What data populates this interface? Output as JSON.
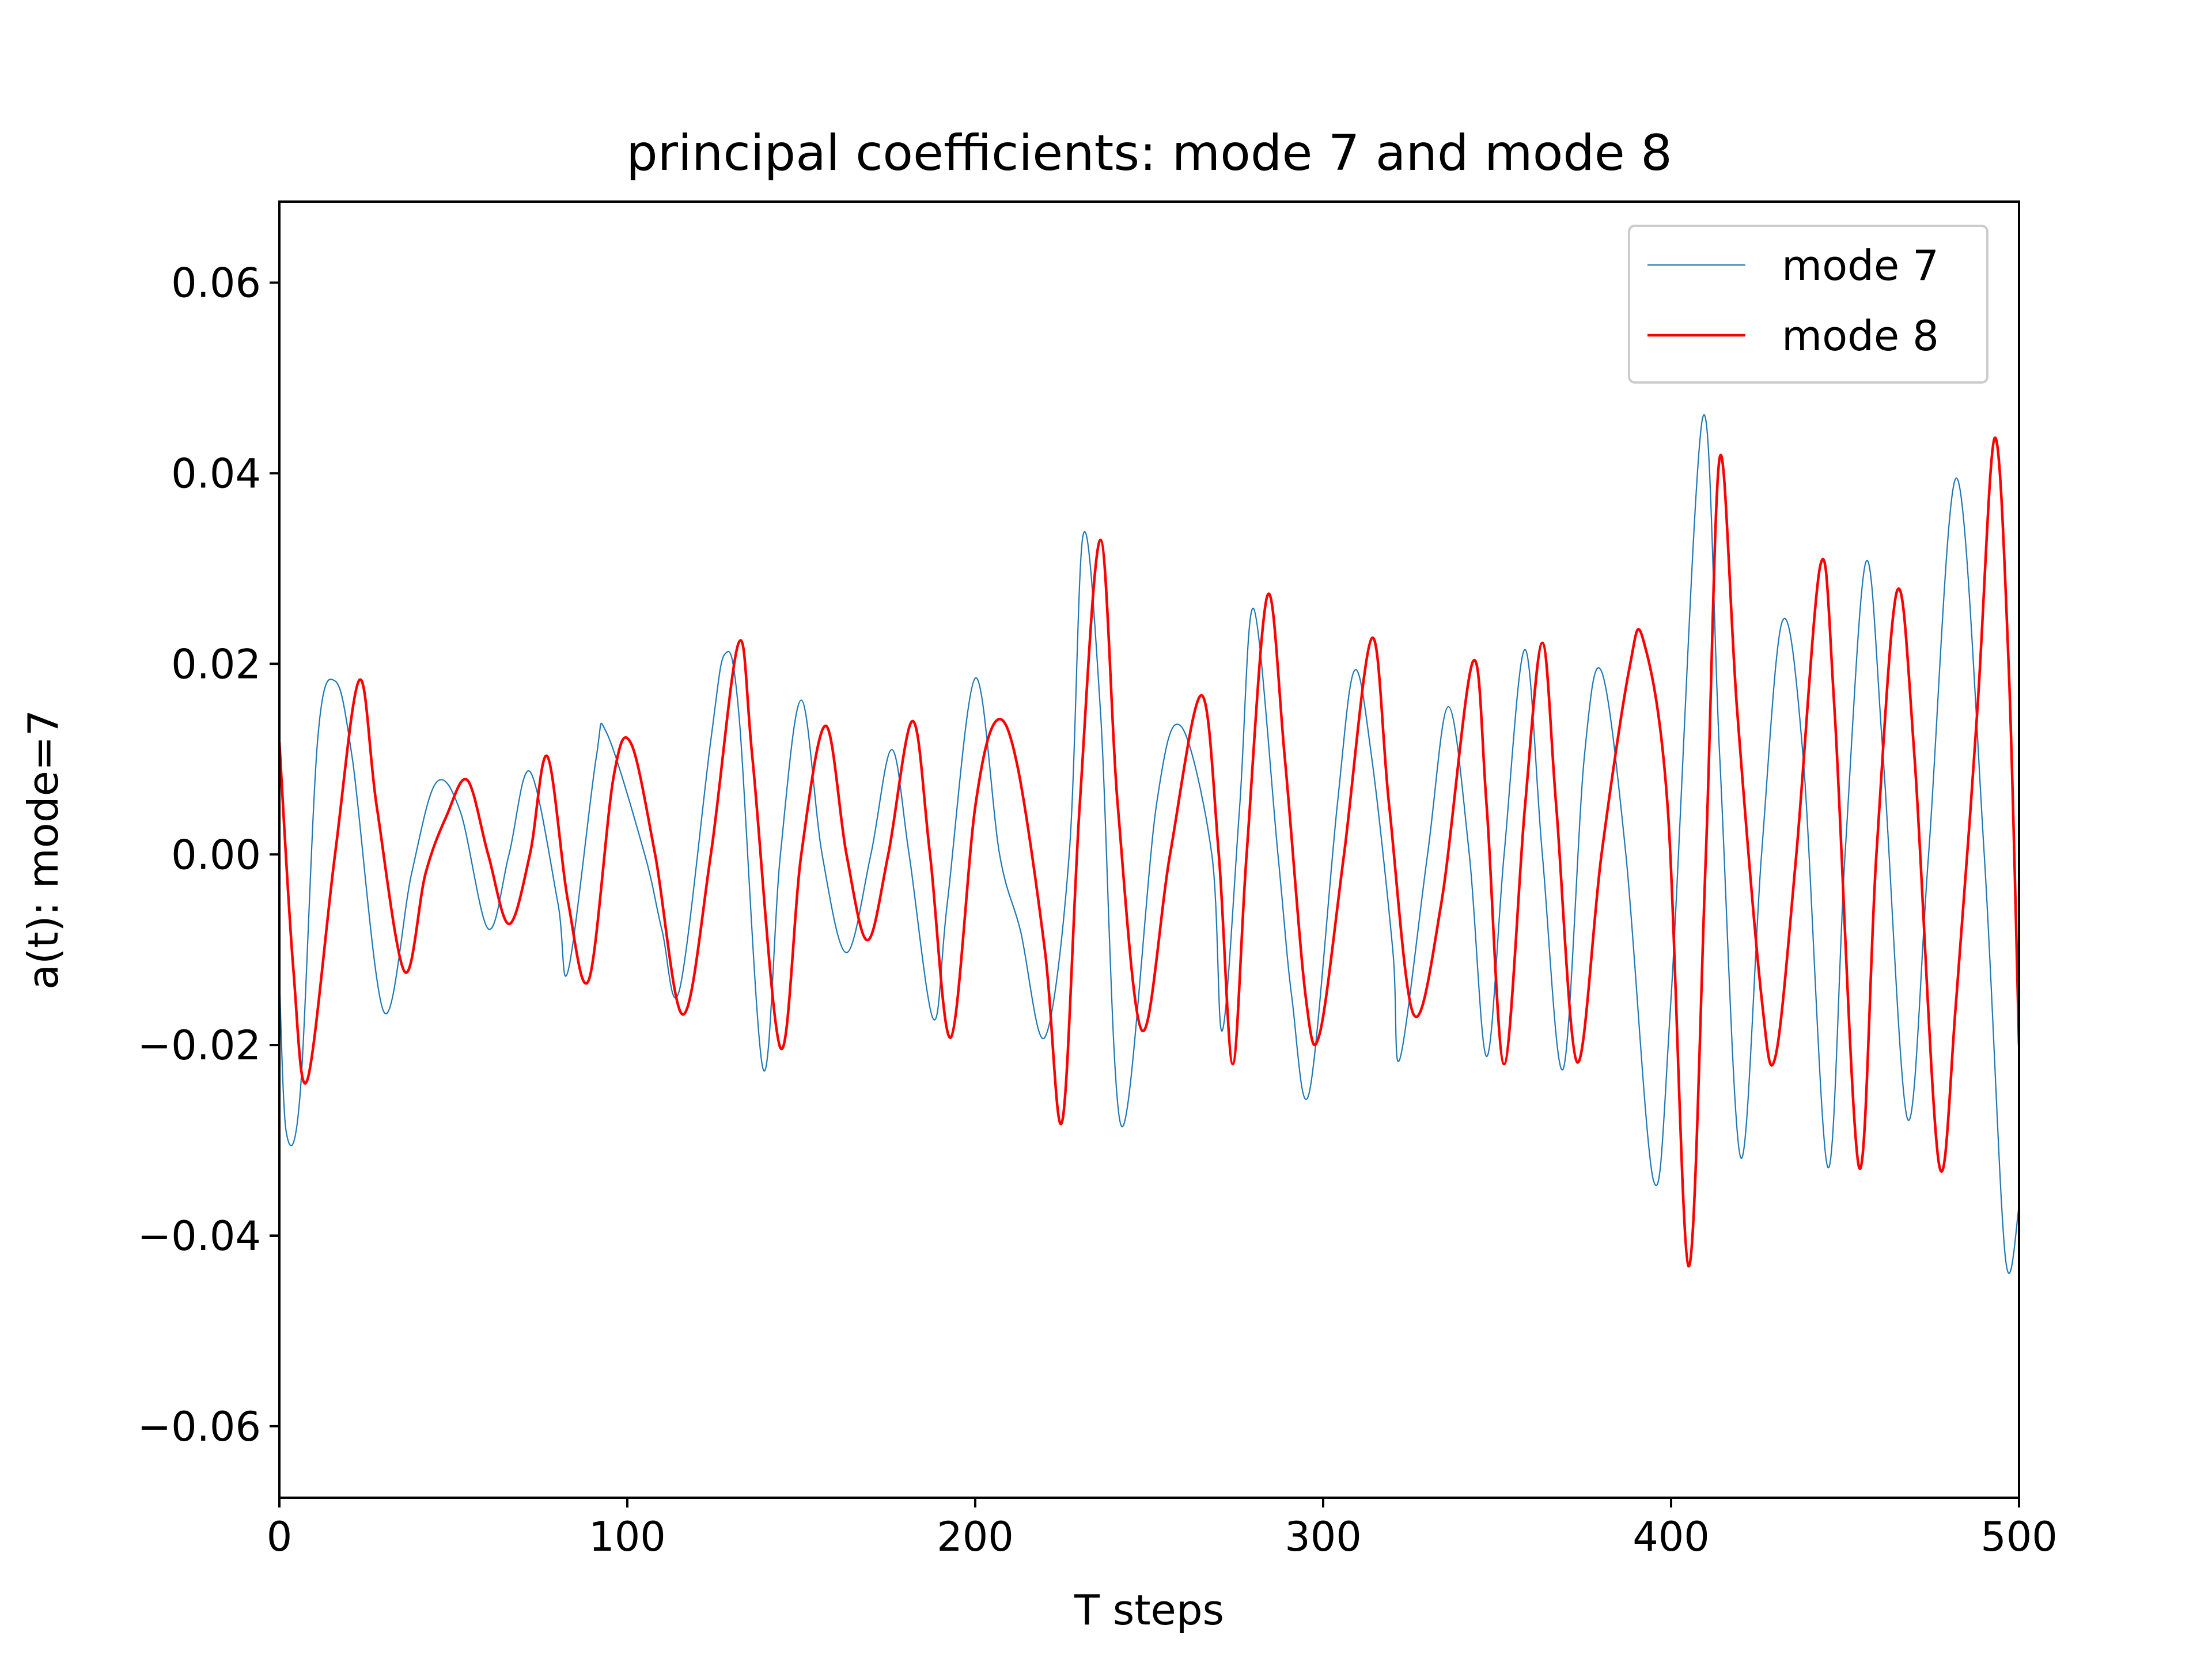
{
  "chart_data": {
    "type": "line",
    "title": "principal coefficients: mode 7 and mode 8",
    "xlabel": "T steps",
    "ylabel": "a(t): mode=7",
    "xlim": [
      0,
      500
    ],
    "ylim": [
      -0.0675,
      0.0685
    ],
    "xticks": [
      0,
      100,
      200,
      300,
      400,
      500
    ],
    "xtick_labels": [
      "0",
      "100",
      "200",
      "300",
      "400",
      "500"
    ],
    "yticks": [
      -0.06,
      -0.04,
      -0.02,
      0.0,
      0.02,
      0.04,
      0.06
    ],
    "ytick_labels": [
      "−0.06",
      "−0.04",
      "−0.02",
      "0.00",
      "0.02",
      "0.04",
      "0.06"
    ],
    "grid": false,
    "legend_position": "top-right",
    "series": [
      {
        "name": "mode 7",
        "color": "#1f77b4",
        "points": [
          [
            0,
            -0.013
          ],
          [
            2,
            -0.0292
          ],
          [
            6,
            -0.025
          ],
          [
            11,
            0.012
          ],
          [
            16,
            0.0182
          ],
          [
            21,
            0.01
          ],
          [
            30,
            -0.0165
          ],
          [
            38,
            -0.002
          ],
          [
            45,
            0.0075
          ],
          [
            52,
            0.0045
          ],
          [
            60,
            -0.0078
          ],
          [
            66,
            0.0
          ],
          [
            72,
            0.0087
          ],
          [
            80,
            -0.005
          ],
          [
            83,
            -0.0122
          ],
          [
            91,
            0.01
          ],
          [
            94,
            0.0128
          ],
          [
            105,
            0.0
          ],
          [
            110,
            -0.008
          ],
          [
            115,
            -0.0142
          ],
          [
            124,
            0.012
          ],
          [
            128,
            0.021
          ],
          [
            132,
            0.015
          ],
          [
            139,
            -0.0225
          ],
          [
            144,
            0.0
          ],
          [
            150,
            0.0162
          ],
          [
            156,
            0.0
          ],
          [
            163,
            -0.0103
          ],
          [
            170,
            0.0
          ],
          [
            176,
            0.011
          ],
          [
            181,
            0.0
          ],
          [
            188,
            -0.0173
          ],
          [
            192,
            -0.005
          ],
          [
            200,
            0.0185
          ],
          [
            207,
            0.0
          ],
          [
            213,
            -0.008
          ],
          [
            220,
            -0.0192
          ],
          [
            227,
            0.0
          ],
          [
            231,
            0.0335
          ],
          [
            236,
            0.015
          ],
          [
            242,
            -0.0285
          ],
          [
            252,
            0.005
          ],
          [
            259,
            0.0135
          ],
          [
            268,
            0.0
          ],
          [
            271,
            -0.0185
          ],
          [
            276,
            0.005
          ],
          [
            280,
            0.0258
          ],
          [
            287,
            0.0
          ],
          [
            291,
            -0.015
          ],
          [
            296,
            -0.025
          ],
          [
            304,
            0.005
          ],
          [
            309,
            0.0193
          ],
          [
            314,
            0.01
          ],
          [
            320,
            -0.01
          ],
          [
            322,
            -0.0215
          ],
          [
            330,
            0.0
          ],
          [
            336,
            0.0155
          ],
          [
            342,
            0.0
          ],
          [
            347,
            -0.0212
          ],
          [
            352,
            0.0
          ],
          [
            358,
            0.0215
          ],
          [
            363,
            0.0
          ],
          [
            369,
            -0.0225
          ],
          [
            375,
            0.01
          ],
          [
            380,
            0.0192
          ],
          [
            387,
            0.0
          ],
          [
            395,
            -0.0343
          ],
          [
            400,
            -0.015
          ],
          [
            409,
            0.0457
          ],
          [
            414,
            0.01
          ],
          [
            420,
            -0.0318
          ],
          [
            426,
            0.0
          ],
          [
            432,
            0.0245
          ],
          [
            438,
            0.01
          ],
          [
            445,
            -0.0328
          ],
          [
            450,
            0.0
          ],
          [
            456,
            0.0307
          ],
          [
            461,
            0.01
          ],
          [
            468,
            -0.0278
          ],
          [
            474,
            0.0
          ],
          [
            482,
            0.0395
          ],
          [
            490,
            0.0
          ],
          [
            496,
            -0.042
          ],
          [
            500,
            -0.037
          ]
        ]
      },
      {
        "name": "mode 8",
        "color": "#ff0000",
        "points": [
          [
            0,
            0.0118
          ],
          [
            4,
            -0.012
          ],
          [
            8,
            -0.0237
          ],
          [
            16,
            0.0
          ],
          [
            23,
            0.0183
          ],
          [
            28,
            0.005
          ],
          [
            36,
            -0.0123
          ],
          [
            42,
            -0.002
          ],
          [
            48,
            0.004
          ],
          [
            54,
            0.0078
          ],
          [
            60,
            0.0
          ],
          [
            66,
            -0.0073
          ],
          [
            72,
            0.0
          ],
          [
            77,
            0.0103
          ],
          [
            83,
            -0.005
          ],
          [
            89,
            -0.0131
          ],
          [
            96,
            0.008
          ],
          [
            101,
            0.0117
          ],
          [
            108,
            0.0
          ],
          [
            116,
            -0.0168
          ],
          [
            124,
            0.0
          ],
          [
            132,
            0.0222
          ],
          [
            136,
            0.01
          ],
          [
            144,
            -0.0203
          ],
          [
            150,
            0.0
          ],
          [
            157,
            0.0135
          ],
          [
            163,
            0.0
          ],
          [
            169,
            -0.009
          ],
          [
            175,
            0.0
          ],
          [
            182,
            0.014
          ],
          [
            187,
            0.0
          ],
          [
            193,
            -0.0192
          ],
          [
            200,
            0.005
          ],
          [
            206,
            0.014
          ],
          [
            212,
            0.0095
          ],
          [
            220,
            -0.01
          ],
          [
            225,
            -0.028
          ],
          [
            230,
            0.005
          ],
          [
            236,
            0.033
          ],
          [
            241,
            0.005
          ],
          [
            248,
            -0.0185
          ],
          [
            256,
            0.0
          ],
          [
            265,
            0.0167
          ],
          [
            270,
            0.0
          ],
          [
            274,
            -0.022
          ],
          [
            278,
            0.0
          ],
          [
            284,
            0.0272
          ],
          [
            289,
            0.01
          ],
          [
            295,
            -0.015
          ],
          [
            299,
            -0.0188
          ],
          [
            306,
            0.0
          ],
          [
            314,
            0.0227
          ],
          [
            319,
            0.005
          ],
          [
            326,
            -0.0168
          ],
          [
            334,
            -0.005
          ],
          [
            343,
            0.0202
          ],
          [
            347,
            0.005
          ],
          [
            352,
            -0.022
          ],
          [
            358,
            0.005
          ],
          [
            363,
            0.0222
          ],
          [
            367,
            0.005
          ],
          [
            373,
            -0.0218
          ],
          [
            380,
            0.0
          ],
          [
            388,
            0.0195
          ],
          [
            392,
            0.0225
          ],
          [
            399,
            0.005
          ],
          [
            405,
            -0.0432
          ],
          [
            410,
            0.0
          ],
          [
            414,
            0.0417
          ],
          [
            419,
            0.015
          ],
          [
            426,
            -0.015
          ],
          [
            430,
            -0.0212
          ],
          [
            436,
            0.0
          ],
          [
            443,
            0.0305
          ],
          [
            447,
            0.015
          ],
          [
            454,
            -0.0328
          ],
          [
            459,
            0.0
          ],
          [
            465,
            0.0277
          ],
          [
            470,
            0.01
          ],
          [
            477,
            -0.0325
          ],
          [
            482,
            -0.015
          ],
          [
            488,
            0.015
          ],
          [
            493,
            0.0437
          ],
          [
            497,
            0.02
          ],
          [
            500,
            -0.02
          ]
        ]
      }
    ]
  }
}
